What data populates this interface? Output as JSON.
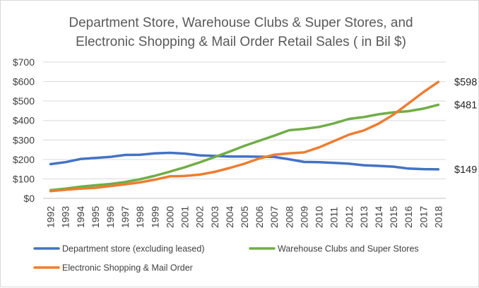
{
  "chart_data": {
    "type": "line",
    "title": [
      "Department Store, Warehouse Clubs & Super Stores, and",
      "Electronic Shopping & Mail Order Retail Sales ( in Bil $)"
    ],
    "xlabel": "",
    "ylabel": "",
    "ylim": [
      0,
      700
    ],
    "yticks": [
      "$0",
      "$100",
      "$200",
      "$300",
      "$400",
      "$500",
      "$600",
      "$700"
    ],
    "grid": "horizontal",
    "legend_position": "bottom",
    "categories": [
      "1992",
      "1993",
      "1994",
      "1995",
      "1996",
      "1997",
      "1998",
      "1999",
      "2000",
      "2001",
      "2002",
      "2003",
      "2004",
      "2005",
      "2006",
      "2007",
      "2008",
      "2009",
      "2010",
      "2011",
      "2012",
      "2013",
      "2014",
      "2015",
      "2016",
      "2017",
      "2018"
    ],
    "series": [
      {
        "name": "Department store (excluding leased)",
        "color": "#4472c4",
        "end_label": "$149",
        "values": [
          176,
          186,
          202,
          208,
          213,
          223,
          224,
          231,
          234,
          230,
          221,
          218,
          215,
          215,
          214,
          213,
          201,
          187,
          186,
          182,
          178,
          170,
          167,
          163,
          153,
          150,
          149
        ]
      },
      {
        "name": "Warehouse Clubs and Super Stores",
        "color": "#70ad47",
        "end_label": "$481",
        "values": [
          42,
          50,
          60,
          67,
          74,
          84,
          98,
          116,
          137,
          160,
          185,
          212,
          240,
          270,
          296,
          322,
          350,
          357,
          367,
          385,
          408,
          418,
          432,
          442,
          448,
          461,
          481
        ]
      },
      {
        "name": "Electronic Shopping & Mail Order",
        "color": "#ed7d31",
        "end_label": "$598",
        "values": [
          37,
          44,
          50,
          54,
          63,
          72,
          82,
          96,
          113,
          115,
          122,
          136,
          156,
          178,
          205,
          224,
          231,
          236,
          262,
          294,
          327,
          349,
          384,
          431,
          488,
          546,
          598
        ]
      }
    ]
  }
}
